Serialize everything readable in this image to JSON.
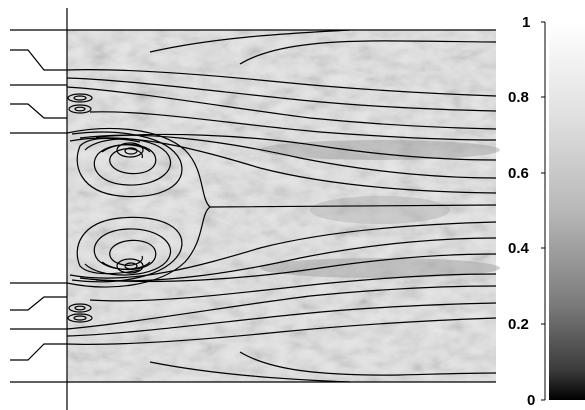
{
  "colorbar": {
    "tick_labels": [
      "0",
      "0.2",
      "0.4",
      "0.6",
      "0.8",
      "1"
    ],
    "gradient_dark": "#000000",
    "gradient_light": "#ffffff"
  },
  "plot": {
    "background_light": "#f0f0f0",
    "background_mid": "#c4c4c4",
    "background_dark": "#5a5a5a",
    "streamline_color": "#000000",
    "vortices": [
      "upper-corner-eddy",
      "upper-main-vortex",
      "lower-main-vortex",
      "lower-corner-eddy"
    ]
  }
}
